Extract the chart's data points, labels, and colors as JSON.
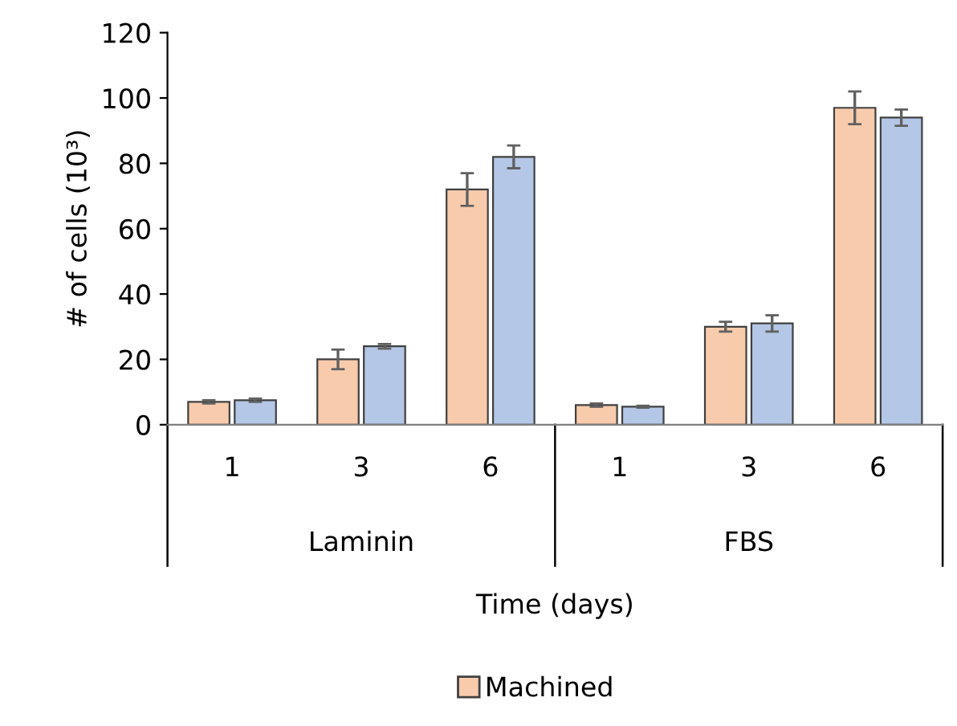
{
  "chart_data": {
    "type": "bar",
    "ylabel": "# of cells (10³)",
    "xlabel": "Time (days)",
    "categories": [
      "1",
      "3",
      "6",
      "1",
      "3",
      "6"
    ],
    "annotations": [
      "Laminin",
      "FBS"
    ],
    "series": [
      {
        "name": "Machined",
        "color": "#f8cbad",
        "values": [
          7,
          20,
          72,
          6,
          30,
          97
        ],
        "errors": [
          0.5,
          3,
          5,
          0.5,
          1.5,
          5
        ]
      },
      {
        "color": "#b4c7e7",
        "values": [
          7.5,
          24,
          82,
          5.5,
          31,
          94
        ],
        "errors": [
          0.5,
          0.7,
          3.5,
          0.3,
          2.5,
          2.5
        ]
      }
    ],
    "ylim": [
      0,
      120
    ],
    "yticks": [
      0,
      20,
      40,
      60,
      80,
      100,
      120
    ],
    "grid": false,
    "legend": "bottom"
  }
}
